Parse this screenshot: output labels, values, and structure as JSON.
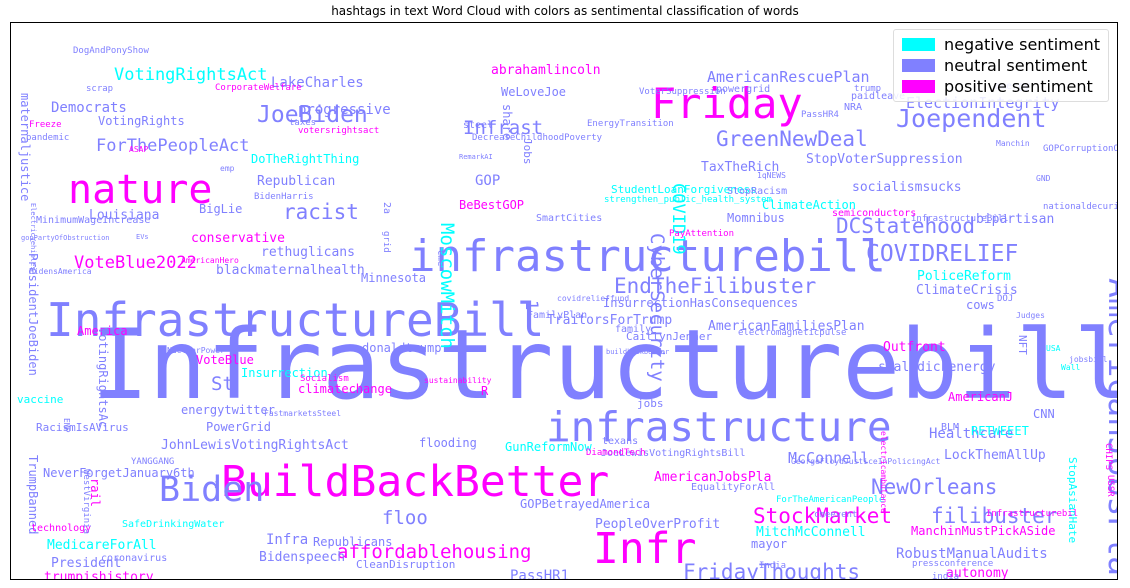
{
  "chart_data": {
    "type": "wordcloud",
    "title": "hashtags in text Word Cloud with colors as sentimental classification of words",
    "legend": {
      "placement": "top-right",
      "entries": [
        {
          "label": "negative sentiment",
          "color": "#00ffff"
        },
        {
          "label": "neutral sentiment",
          "color": "#8080ff"
        },
        {
          "label": "positive sentiment",
          "color": "#ff00ff"
        }
      ]
    },
    "words": [
      {
        "text": "Infrastructurebill",
        "weight": 100,
        "color": "#8080ff"
      },
      {
        "text": "InfrastructureBill",
        "weight": 48,
        "color": "#8080ff"
      },
      {
        "text": "BuildBackBetter",
        "weight": 45,
        "color": "#ff00ff"
      },
      {
        "text": "infrastructurebill",
        "weight": 46,
        "color": "#8080ff"
      },
      {
        "text": "infrastructure",
        "weight": 43,
        "color": "#8080ff"
      },
      {
        "text": "Friday",
        "weight": 44,
        "color": "#ff00ff"
      },
      {
        "text": "nature",
        "weight": 42,
        "color": "#ff00ff"
      },
      {
        "text": "Infr",
        "weight": 45,
        "color": "#ff00ff"
      },
      {
        "text": "Biden",
        "weight": 36,
        "color": "#8080ff"
      },
      {
        "text": "AmericanJobsPlan",
        "weight": 34,
        "color": "#8080ff"
      },
      {
        "text": "Joependent",
        "weight": 26,
        "color": "#8080ff"
      },
      {
        "text": "COVIDRELIEF",
        "weight": 24,
        "color": "#8080ff"
      },
      {
        "text": "JoeBiden",
        "weight": 24,
        "color": "#8080ff"
      },
      {
        "text": "GreenNewDeal",
        "weight": 22,
        "color": "#8080ff"
      },
      {
        "text": "EndTheFilibuster",
        "weight": 22,
        "color": "#8080ff"
      },
      {
        "text": "racist",
        "weight": 22,
        "color": "#8080ff"
      },
      {
        "text": "DCStatehood",
        "weight": 22,
        "color": "#8080ff"
      },
      {
        "text": "StockMarket",
        "weight": 22,
        "color": "#ff00ff"
      },
      {
        "text": "NewOrleans",
        "weight": 22,
        "color": "#8080ff"
      },
      {
        "text": "filibuster",
        "weight": 22,
        "color": "#8080ff"
      },
      {
        "text": "Congress",
        "weight": 22,
        "color": "#ff00ff"
      },
      {
        "text": "FridayThoughts",
        "weight": 22,
        "color": "#8080ff"
      },
      {
        "text": "affordablehousing",
        "weight": 20,
        "color": "#ff00ff"
      },
      {
        "text": "MoscowMitch",
        "weight": 20,
        "color": "#00ffff"
      },
      {
        "text": "CyberSecurity",
        "weight": 20,
        "color": "#8080ff"
      },
      {
        "text": "Infrast",
        "weight": 20,
        "color": "#8080ff"
      },
      {
        "text": "St",
        "weight": 20,
        "color": "#8080ff"
      },
      {
        "text": "floo",
        "weight": 20,
        "color": "#8080ff"
      },
      {
        "text": "COVID19",
        "weight": 18,
        "color": "#00ffff"
      },
      {
        "text": "VotingRightsAct",
        "weight": 18,
        "color": "#00ffff"
      },
      {
        "text": "ForThePeopleAct",
        "weight": 18,
        "color": "#8080ff"
      },
      {
        "text": "VoteBlue2022",
        "weight": 18,
        "color": "#ff00ff"
      },
      {
        "text": "ElectionIntegrity",
        "weight": 16,
        "color": "#8080ff"
      },
      {
        "text": "AmericanRescuePlan",
        "weight": 16,
        "color": "#8080ff"
      },
      {
        "text": "McConnell",
        "weight": 16,
        "color": "#8080ff"
      },
      {
        "text": "LakeCharles",
        "weight": 15,
        "color": "#8080ff"
      },
      {
        "text": "Democrats",
        "weight": 15,
        "color": "#8080ff"
      },
      {
        "text": "GOP",
        "weight": 15,
        "color": "#8080ff"
      },
      {
        "text": "progressive",
        "weight": 15,
        "color": "#8080ff"
      },
      {
        "text": "abrahamlincoln",
        "weight": 14,
        "color": "#ff00ff"
      },
      {
        "text": "Healthcare",
        "weight": 15,
        "color": "#8080ff"
      },
      {
        "text": "RobustManualAudits",
        "weight": 15,
        "color": "#8080ff"
      },
      {
        "text": "PassHR1",
        "weight": 15,
        "color": "#8080ff"
      },
      {
        "text": "Infra",
        "weight": 15,
        "color": "#8080ff"
      },
      {
        "text": "Louisiana",
        "weight": 14,
        "color": "#8080ff"
      },
      {
        "text": "bipartisan",
        "weight": 14,
        "color": "#8080ff"
      },
      {
        "text": "Republican",
        "weight": 14,
        "color": "#8080ff"
      },
      {
        "text": "conservative",
        "weight": 14,
        "color": "#ff00ff"
      },
      {
        "text": "rethuglicans",
        "weight": 14,
        "color": "#8080ff"
      },
      {
        "text": "blackmaternalhealth",
        "weight": 14,
        "color": "#8080ff"
      },
      {
        "text": "TaxTheRich",
        "weight": 14,
        "color": "#8080ff"
      },
      {
        "text": "StopVoterSuppression",
        "weight": 14,
        "color": "#8080ff"
      },
      {
        "text": "socialismsucks",
        "weight": 14,
        "color": "#8080ff"
      },
      {
        "text": "ClimateAction",
        "weight": 13,
        "color": "#00ffff"
      },
      {
        "text": "AmericanFamiliesPlan",
        "weight": 14,
        "color": "#8080ff"
      },
      {
        "text": "TraitorsForTrump",
        "weight": 14,
        "color": "#8080ff"
      },
      {
        "text": "PoliceReform",
        "weight": 14,
        "color": "#00ffff"
      },
      {
        "text": "ClimateCrisis",
        "weight": 14,
        "color": "#8080ff"
      },
      {
        "text": "Outfront",
        "weight": 14,
        "color": "#ff00ff"
      },
      {
        "text": "smalldickenergy",
        "weight": 14,
        "color": "#8080ff"
      },
      {
        "text": "JohnLewisVotingRightsAct",
        "weight": 14,
        "color": "#8080ff"
      },
      {
        "text": "LockThemAllUp",
        "weight": 14,
        "color": "#8080ff"
      },
      {
        "text": "AmericanJobsPla",
        "weight": 14,
        "color": "#ff00ff"
      },
      {
        "text": "GOPBetrayedAmerica",
        "weight": 13,
        "color": "#8080ff"
      },
      {
        "text": "PeopleOverProfit",
        "weight": 14,
        "color": "#8080ff"
      },
      {
        "text": "MitchMcConnell",
        "weight": 14,
        "color": "#00ffff"
      },
      {
        "text": "MedicareForAll",
        "weight": 14,
        "color": "#00ffff"
      },
      {
        "text": "President",
        "weight": 14,
        "color": "#8080ff"
      },
      {
        "text": "Bidenspeech",
        "weight": 14,
        "color": "#8080ff"
      },
      {
        "text": "trumpishistory",
        "weight": 14,
        "color": "#ff00ff"
      },
      {
        "text": "InsurrectionMustHaveConsequences",
        "weight": 14,
        "color": "#00ffff"
      },
      {
        "text": "ManchinMustPickASide",
        "weight": 13,
        "color": "#ff00ff"
      },
      {
        "text": "autonomy",
        "weight": 14,
        "color": "#ff00ff"
      },
      {
        "text": "BeBestGOP",
        "weight": 13,
        "color": "#ff00ff"
      },
      {
        "text": "BigLie",
        "weight": 13,
        "color": "#8080ff"
      },
      {
        "text": "Momnibus",
        "weight": 13,
        "color": "#8080ff"
      },
      {
        "text": "VoteBlue",
        "weight": 13,
        "color": "#ff00ff"
      },
      {
        "text": "Insurrection",
        "weight": 13,
        "color": "#00ffff"
      },
      {
        "text": "donaldtrump",
        "weight": 13,
        "color": "#8080ff"
      },
      {
        "text": "climatechange",
        "weight": 13,
        "color": "#ff00ff"
      },
      {
        "text": "energytwitter",
        "weight": 13,
        "color": "#8080ff"
      },
      {
        "text": "PowerGrid",
        "weight": 12,
        "color": "#8080ff"
      },
      {
        "text": "flooding",
        "weight": 13,
        "color": "#8080ff"
      },
      {
        "text": "GunReformNow",
        "weight": 13,
        "color": "#00ffff"
      },
      {
        "text": "America",
        "weight": 13,
        "color": "#ff00ff"
      },
      {
        "text": "Minnesota",
        "weight": 13,
        "color": "#8080ff"
      },
      {
        "text": "mayor",
        "weight": 13,
        "color": "#8080ff"
      },
      {
        "text": "AmericanJ",
        "weight": 13,
        "color": "#ff00ff"
      },
      {
        "text": "CNN",
        "weight": 12,
        "color": "#8080ff"
      },
      {
        "text": "RETWEEET",
        "weight": 12,
        "color": "#00ffff"
      },
      {
        "text": "VotingRights",
        "weight": 13,
        "color": "#8080ff"
      },
      {
        "text": "DoTheRightThing",
        "weight": 13,
        "color": "#00ffff"
      },
      {
        "text": "WeLoveJoe",
        "weight": 13,
        "color": "#8080ff"
      },
      {
        "text": "InsurrectionHasConsequences",
        "weight": 13,
        "color": "#8080ff"
      },
      {
        "text": "maternaljustice",
        "weight": 13,
        "color": "#8080ff"
      },
      {
        "text": "PresidentJoeBiden",
        "weight": 13,
        "color": "#8080ff"
      },
      {
        "text": "VotingRightsAc",
        "weight": 13,
        "color": "#8080ff"
      },
      {
        "text": "TrumpBanned",
        "weight": 12,
        "color": "#8080ff"
      },
      {
        "text": "rail",
        "weight": 13,
        "color": "#ff00ff"
      },
      {
        "text": "NeverForgetJanuary6th",
        "weight": 12,
        "color": "#8080ff"
      },
      {
        "text": "StopAsianHate",
        "weight": 11,
        "color": "#00ffff"
      },
      {
        "text": "CaitlynJenner",
        "weight": 11,
        "color": "#8080ff"
      },
      {
        "text": "Republicans",
        "weight": 12,
        "color": "#8080ff"
      },
      {
        "text": "Jobs",
        "weight": 11,
        "color": "#8080ff"
      },
      {
        "text": "share",
        "weight": 12,
        "color": "#8080ff"
      },
      {
        "text": "cows",
        "weight": 12,
        "color": "#8080ff"
      },
      {
        "text": "NFT",
        "weight": 11,
        "color": "#8080ff"
      },
      {
        "text": "1",
        "weight": 18,
        "color": "#8080ff"
      },
      {
        "text": "R",
        "weight": 12,
        "color": "#ff00ff"
      },
      {
        "text": "StudentLoanForgiveness",
        "weight": 11,
        "color": "#00ffff"
      },
      {
        "text": "ArtificialIntelligence",
        "weight": 11,
        "color": "#8080ff"
      },
      {
        "text": "CleanDisruption",
        "weight": 11,
        "color": "#8080ff"
      },
      {
        "text": "coronavirus",
        "weight": 10,
        "color": "#8080ff"
      },
      {
        "text": "US",
        "weight": 10,
        "color": "#ff00ff"
      },
      {
        "text": "nationalgrid",
        "weight": 10,
        "color": "#8080ff"
      },
      {
        "text": "technology",
        "weight": 10,
        "color": "#ff00ff"
      },
      {
        "text": "SafeDrinkingWater",
        "weight": 10,
        "color": "#00ffff"
      },
      {
        "text": "FastmarketsSteel",
        "weight": 8,
        "color": "#8080ff"
      },
      {
        "text": "YANGGANG",
        "weight": 9,
        "color": "#8080ff"
      },
      {
        "text": "WestVirginia",
        "weight": 9,
        "color": "#8080ff"
      },
      {
        "text": "EMP",
        "weight": 8,
        "color": "#8080ff"
      },
      {
        "text": "vaccine",
        "weight": 11,
        "color": "#00ffff"
      },
      {
        "text": "RacismIsAVirus",
        "weight": 11,
        "color": "#8080ff"
      },
      {
        "text": "jobs",
        "weight": 11,
        "color": "#8080ff"
      },
      {
        "text": "texans",
        "weight": 10,
        "color": "#8080ff"
      },
      {
        "text": "JoeLewisVotingRightsBill",
        "weight": 10,
        "color": "#8080ff"
      },
      {
        "text": "DiamondTech",
        "weight": 9,
        "color": "#ff00ff"
      },
      {
        "text": "EqualityForAll",
        "weight": 10,
        "color": "#8080ff"
      },
      {
        "text": "ForTheAmericanPeople",
        "weight": 9,
        "color": "#00ffff"
      },
      {
        "text": "cmeevent",
        "weight": 9,
        "color": "#8080ff"
      },
      {
        "text": "pressconference",
        "weight": 9,
        "color": "#8080ff"
      },
      {
        "text": "India",
        "weight": 9,
        "color": "#8080ff"
      },
      {
        "text": "india",
        "weight": 9,
        "color": "#8080ff"
      },
      {
        "text": "southernborder",
        "weight": 9,
        "color": "#00ffff"
      },
      {
        "text": "Infrastructurebil",
        "weight": 9,
        "color": "#ff00ff"
      },
      {
        "text": "GeorgeFloydJusticeInPolicingAct",
        "weight": 8,
        "color": "#8080ff"
      },
      {
        "text": "USSR",
        "weight": 9,
        "color": "#ff00ff"
      },
      {
        "text": "CHIPS",
        "weight": 9,
        "color": "#ff00ff"
      },
      {
        "text": "DOJ",
        "weight": 9,
        "color": "#8080ff"
      },
      {
        "text": "USA",
        "weight": 8,
        "color": "#00ffff"
      },
      {
        "text": "Judges",
        "weight": 8,
        "color": "#8080ff"
      },
      {
        "text": "jobsbill",
        "weight": 8,
        "color": "#8080ff"
      },
      {
        "text": "Wall",
        "weight": 8,
        "color": "#00ffff"
      },
      {
        "text": "BLM",
        "weight": 10,
        "color": "#8080ff"
      },
      {
        "text": "electricambulance",
        "weight": 8,
        "color": "#ff00ff"
      },
      {
        "text": "sustainability",
        "weight": 8,
        "color": "#ff00ff"
      },
      {
        "text": "NuclearPower",
        "weight": 8,
        "color": "#8080ff"
      },
      {
        "text": "Socialism",
        "weight": 9,
        "color": "#ff00ff"
      },
      {
        "text": "buildbackbetter",
        "weight": 7,
        "color": "#8080ff"
      },
      {
        "text": "family",
        "weight": 10,
        "color": "#8080ff"
      },
      {
        "text": "FamilyPlan",
        "weight": 10,
        "color": "#8080ff"
      },
      {
        "text": "covidrelieffund",
        "weight": 8,
        "color": "#8080ff"
      },
      {
        "text": "electromagneticpulse",
        "weight": 9,
        "color": "#8080ff"
      },
      {
        "text": "semiconductors",
        "weight": 10,
        "color": "#ff00ff"
      },
      {
        "text": "infrastructureBill",
        "weight": 9,
        "color": "#8080ff"
      },
      {
        "text": "StopRacism",
        "weight": 10,
        "color": "#8080ff"
      },
      {
        "text": "1qNEWS",
        "weight": 8,
        "color": "#8080ff"
      },
      {
        "text": "Manchin",
        "weight": 8,
        "color": "#8080ff"
      },
      {
        "text": "GND",
        "weight": 8,
        "color": "#8080ff"
      },
      {
        "text": "nationaldecuri",
        "weight": 9,
        "color": "#8080ff"
      },
      {
        "text": "GOPCorruptionOverCountry",
        "weight": 9,
        "color": "#8080ff"
      },
      {
        "text": "PassHR4",
        "weight": 9,
        "color": "#8080ff"
      },
      {
        "text": "NRA",
        "weight": 10,
        "color": "#8080ff"
      },
      {
        "text": "emergy",
        "weight": 10,
        "color": "#8080ff"
      },
      {
        "text": "trump",
        "weight": 9,
        "color": "#8080ff"
      },
      {
        "text": "paidleave",
        "weight": 10,
        "color": "#8080ff"
      },
      {
        "text": "powergrid",
        "weight": 10,
        "color": "#8080ff"
      },
      {
        "text": "VoterSuppression",
        "weight": 9,
        "color": "#8080ff"
      },
      {
        "text": "steel",
        "weight": 10,
        "color": "#8080ff"
      },
      {
        "text": "EnergyTransition",
        "weight": 9,
        "color": "#8080ff"
      },
      {
        "text": "DecreaseChildhoodPoverty",
        "weight": 9,
        "color": "#8080ff"
      },
      {
        "text": "RemarkAI",
        "weight": 7,
        "color": "#8080ff"
      },
      {
        "text": "2a",
        "weight": 10,
        "color": "#8080ff"
      },
      {
        "text": "cme",
        "weight": 9,
        "color": "#8080ff"
      },
      {
        "text": "grid",
        "weight": 9,
        "color": "#8080ff"
      },
      {
        "text": "strengthen_public_health_system",
        "weight": 9,
        "color": "#00ffff"
      },
      {
        "text": "SmartCities",
        "weight": 10,
        "color": "#8080ff"
      },
      {
        "text": "PayAttention",
        "weight": 9,
        "color": "#ff00ff"
      },
      {
        "text": "DogAndPonyShow",
        "weight": 9,
        "color": "#8080ff"
      },
      {
        "text": "scrap",
        "weight": 9,
        "color": "#8080ff"
      },
      {
        "text": "CorporateWelfare",
        "weight": 9,
        "color": "#ff00ff"
      },
      {
        "text": "taxes",
        "weight": 9,
        "color": "#8080ff"
      },
      {
        "text": "votersrightsact",
        "weight": 9,
        "color": "#ff00ff"
      },
      {
        "text": "ASAP",
        "weight": 8,
        "color": "#ff00ff"
      },
      {
        "text": "emp",
        "weight": 8,
        "color": "#8080ff"
      },
      {
        "text": "BidenHarris",
        "weight": 9,
        "color": "#8080ff"
      },
      {
        "text": "Freeze",
        "weight": 9,
        "color": "#ff00ff"
      },
      {
        "text": "pandemic",
        "weight": 9,
        "color": "#8080ff"
      },
      {
        "text": "MinimumWageIncrease",
        "weight": 10,
        "color": "#8080ff"
      },
      {
        "text": "gopPartyOfObstruction",
        "weight": 7,
        "color": "#8080ff"
      },
      {
        "text": "EVs",
        "weight": 7,
        "color": "#8080ff"
      },
      {
        "text": "BidensAmerica",
        "weight": 8,
        "color": "#8080ff"
      },
      {
        "text": "ElectricVehicles",
        "weight": 7,
        "color": "#8080ff"
      },
      {
        "text": "AmericanHero",
        "weight": 8,
        "color": "#ff00ff"
      },
      {
        "text": "I",
        "weight": 9,
        "color": "#8080ff"
      }
    ]
  }
}
